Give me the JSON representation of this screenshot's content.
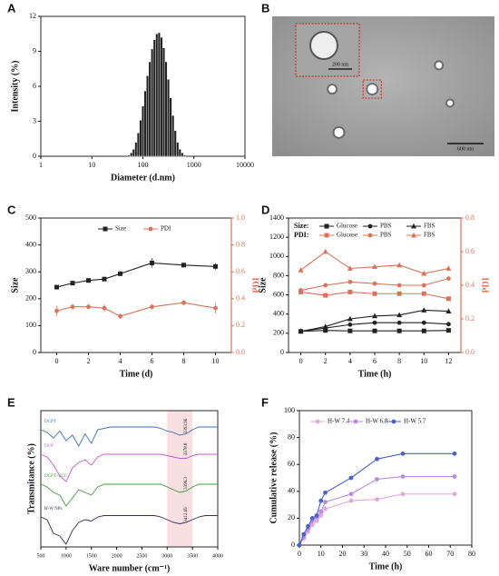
{
  "chart_data": [
    {
      "panel": "A",
      "type": "histogram",
      "xlabel": "Diameter (d.nm)",
      "ylabel": "Intensity (%)",
      "color": "#222222",
      "xlog": true,
      "xlim": [
        1,
        10000
      ],
      "xticks": [
        1,
        10,
        100,
        1000,
        10000
      ],
      "ylim": [
        0,
        12
      ],
      "yticks": [
        0,
        3,
        6,
        9,
        12
      ],
      "bins": [
        50.7,
        56.3,
        62.5,
        69.4,
        77.0,
        85.5,
        94.9,
        105.3,
        116.9,
        129.8,
        144.1,
        160.0,
        177.6,
        197.1,
        218.8,
        242.9,
        269.6,
        299.3,
        332.2,
        368.8,
        409.4,
        454.4,
        504.4,
        560.0,
        621.6,
        690.0
      ],
      "values": [
        0.1,
        0.3,
        0.6,
        1.2,
        2.0,
        3.1,
        4.3,
        5.6,
        6.9,
        8.1,
        9.2,
        10.0,
        10.5,
        10.6,
        10.2,
        9.3,
        8.1,
        6.6,
        5.0,
        3.5,
        2.2,
        1.2,
        0.6,
        0.3,
        0.1
      ]
    },
    {
      "panel": "B",
      "type": "image",
      "annotations": [
        "200 nm",
        "600 nm"
      ]
    },
    {
      "panel": "C",
      "type": "line",
      "xlabel": "Time (d)",
      "ylabel": "Size",
      "y2label": "PDI",
      "y2color": "#d9735a",
      "legend": "upper center",
      "xlim": [
        -1,
        11
      ],
      "xticks": [
        0,
        2,
        4,
        6,
        8,
        10
      ],
      "ylim": [
        0,
        500
      ],
      "yticks": [
        0,
        100,
        200,
        300,
        400,
        500
      ],
      "y2lim": [
        0,
        1
      ],
      "y2ticks": [
        {
          "value": 0,
          "label": "0.0"
        },
        0.2,
        0.4,
        0.6,
        0.8,
        {
          "value": 1,
          "label": "1.0"
        }
      ],
      "x": [
        0,
        1,
        2,
        3,
        4,
        6,
        8,
        10
      ],
      "series": [
        {
          "name": "Size",
          "color": "#222222",
          "marker": "square",
          "values": [
            243,
            258,
            268,
            273,
            293,
            333,
            325,
            320
          ],
          "errors": [
            5,
            5,
            5,
            5,
            8,
            18,
            8,
            12
          ]
        },
        {
          "name": "PDI",
          "color": "#d9735a",
          "marker": "circle",
          "axis": "y2",
          "values": [
            0.31,
            0.34,
            0.34,
            0.33,
            0.27,
            0.34,
            0.37,
            0.33
          ],
          "errors": [
            0.04,
            0.02,
            0.02,
            0.03,
            0.02,
            0.02,
            0.02,
            0.04
          ]
        }
      ]
    },
    {
      "panel": "D",
      "type": "line",
      "xlabel": "Time (h)",
      "ylabel": "Size",
      "y2label": "PDI",
      "y2color": "#d9735a",
      "legend": "upper left",
      "legend_titles": [
        "Size:",
        "PDI:"
      ],
      "xlim": [
        -1,
        13
      ],
      "xticks": [
        0,
        2,
        4,
        6,
        8,
        10,
        12
      ],
      "ylim": [
        0,
        1400
      ],
      "yticks": [
        0,
        200,
        400,
        600,
        800,
        1000,
        1200,
        1400
      ],
      "y2lim": [
        0,
        0.8
      ],
      "y2ticks": [
        {
          "value": 0,
          "label": "0.0"
        },
        0.2,
        0.4,
        0.6,
        0.8
      ],
      "x": [
        0,
        2,
        4,
        6,
        8,
        10,
        12
      ],
      "series": [
        {
          "name": "Glucose",
          "color": "#222222",
          "marker": "square",
          "values": [
            220,
            230,
            225,
            225,
            225,
            225,
            230
          ]
        },
        {
          "name": "PBS",
          "color": "#222222",
          "marker": "circle",
          "values": [
            220,
            255,
            290,
            310,
            310,
            310,
            295
          ]
        },
        {
          "name": "FBS",
          "color": "#222222",
          "marker": "triangle",
          "values": [
            220,
            270,
            350,
            380,
            390,
            440,
            430
          ]
        },
        {
          "name": "Glucose",
          "color": "#d9735a",
          "marker": "square",
          "axis": "y2",
          "values": [
            0.36,
            0.34,
            0.36,
            0.35,
            0.35,
            0.35,
            0.32
          ]
        },
        {
          "name": "PBS",
          "color": "#d9735a",
          "marker": "circle",
          "axis": "y2",
          "values": [
            0.37,
            0.4,
            0.42,
            0.41,
            0.4,
            0.4,
            0.44
          ]
        },
        {
          "name": "FBS",
          "color": "#d9735a",
          "marker": "triangle",
          "axis": "y2",
          "values": [
            0.49,
            0.6,
            0.5,
            0.51,
            0.52,
            0.47,
            0.5
          ]
        }
      ]
    },
    {
      "panel": "E",
      "type": "spectra",
      "xlabel": "Ware number (cm⁻¹)",
      "ylabel": "Transmitance (%)",
      "band": [
        3000,
        3500
      ],
      "band_color": "#f3c9cf",
      "xlim": [
        500,
        4000
      ],
      "xticks": [
        500,
        1000,
        1500,
        2000,
        2500,
        3000,
        3500,
        4000
      ],
      "ylim": [
        0,
        100
      ],
      "x": [
        500,
        625,
        750,
        875,
        1000,
        1125,
        1250,
        1375,
        1500,
        1625,
        1750,
        1875,
        2000,
        2125,
        2250,
        2375,
        2500,
        2625,
        2750,
        2875,
        3000,
        3125,
        3250,
        3375,
        3500,
        3625,
        3750,
        3875,
        4000
      ],
      "series": [
        {
          "name": "DCPT",
          "color": "#3d6fb0",
          "peak_label": "3393.96",
          "values": [
            86,
            84,
            80,
            85,
            78,
            82,
            74,
            83,
            76,
            86,
            87,
            88,
            88,
            88,
            88,
            88,
            88,
            88,
            88,
            87,
            85,
            84,
            82,
            83,
            86,
            88,
            88,
            88,
            88
          ]
        },
        {
          "name": "DCP",
          "color": "#c75bc7",
          "peak_label": "3378.8",
          "values": [
            68,
            66,
            60,
            52,
            48,
            58,
            62,
            64,
            60,
            66,
            68,
            68,
            68,
            68,
            68,
            68,
            68,
            68,
            68,
            68,
            67,
            66,
            65,
            65,
            67,
            68,
            68,
            68,
            68
          ]
        },
        {
          "name": "DCPT+SCC",
          "color": "#3f9a3a",
          "peak_label": "3396.3",
          "values": [
            46,
            44,
            40,
            38,
            30,
            36,
            42,
            40,
            38,
            44,
            46,
            46,
            46,
            46,
            46,
            46,
            46,
            46,
            46,
            46,
            44,
            42,
            40,
            41,
            44,
            46,
            46,
            46,
            46
          ]
        },
        {
          "name": "H-W NPs",
          "color": "#3a2a5a",
          "peak_label": "3412.69",
          "values": [
            22,
            20,
            10,
            8,
            2,
            12,
            18,
            20,
            19,
            22,
            23,
            23,
            23,
            23,
            23,
            23,
            23,
            23,
            23,
            22,
            20,
            18,
            17,
            18,
            20,
            22,
            23,
            23,
            23
          ]
        }
      ]
    },
    {
      "panel": "F",
      "type": "line",
      "xlabel": "Time (h)",
      "ylabel": "Cumulative release (%)",
      "legend": "upper left",
      "xlim": [
        0,
        80
      ],
      "xticks": [
        0,
        10,
        20,
        30,
        40,
        50,
        60,
        70,
        80
      ],
      "ylim": [
        0,
        100
      ],
      "yticks": [
        0,
        20,
        40,
        60,
        80,
        100
      ],
      "x": [
        0,
        2,
        4,
        6,
        8,
        10,
        12,
        24,
        36,
        48,
        72
      ],
      "series": [
        {
          "name": "H-W 7.4",
          "color": "#e3a6dc",
          "marker": "circle",
          "values": [
            0,
            5,
            10,
            15,
            18,
            22,
            27,
            33,
            34,
            38,
            38
          ]
        },
        {
          "name": "H-W 6.8",
          "color": "#b68be0",
          "marker": "circle",
          "values": [
            0,
            6,
            12,
            18,
            21,
            25,
            32,
            38,
            49,
            51,
            51
          ]
        },
        {
          "name": "H-W 5.7",
          "color": "#4a63c8",
          "marker": "circle",
          "values": [
            0,
            8,
            14,
            20,
            22,
            33,
            39,
            50,
            64,
            68,
            68
          ]
        }
      ]
    }
  ]
}
